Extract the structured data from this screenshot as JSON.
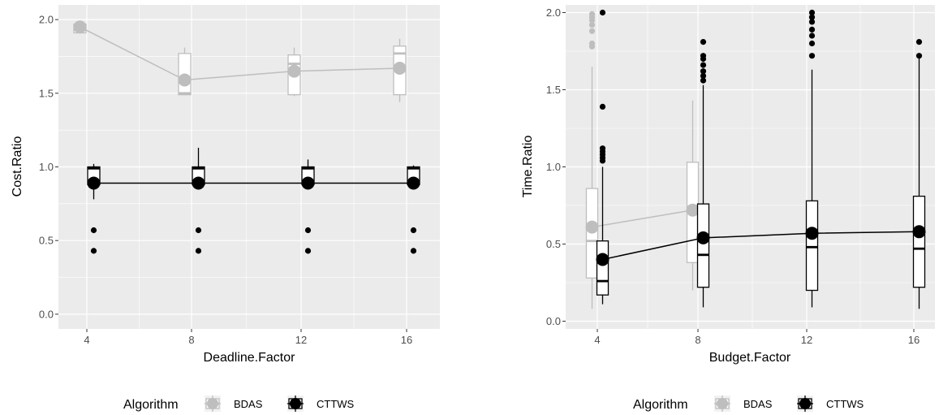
{
  "colors": {
    "panel_bg": "#ebebeb",
    "grid": "#ffffff",
    "BDAS": "#bebebe",
    "CTTWS": "#000000"
  },
  "chart_data": [
    {
      "type": "boxplot",
      "xlabel": "Deadline.Factor",
      "ylabel": "Cost.Ratio",
      "categories": [
        "4",
        "8",
        "12",
        "16"
      ],
      "y_ticks": [
        "0.0",
        "0.5",
        "1.0",
        "1.5",
        "2.0"
      ],
      "ylim": [
        -0.1,
        2.1
      ],
      "grid": true,
      "legend": {
        "title": "Algorithm",
        "position": "bottom",
        "entries": [
          {
            "label": "BDAS",
            "color": "#bebebe"
          },
          {
            "label": "CTTWS",
            "color": "#000000"
          }
        ]
      },
      "series": [
        {
          "key": "BDAS",
          "color": "#bebebe",
          "boxes": [
            {
              "category": "4",
              "q1": 1.91,
              "median": 1.93,
              "q3": 1.97,
              "lower": 1.91,
              "upper": 1.97,
              "mean": 1.95,
              "outliers": []
            },
            {
              "category": "8",
              "q1": 1.49,
              "median": 1.5,
              "q3": 1.77,
              "lower": 1.49,
              "upper": 1.81,
              "mean": 1.59,
              "outliers": []
            },
            {
              "category": "12",
              "q1": 1.49,
              "median": 1.7,
              "q3": 1.76,
              "lower": 1.48,
              "upper": 1.81,
              "mean": 1.65,
              "outliers": []
            },
            {
              "category": "16",
              "q1": 1.49,
              "median": 1.77,
              "q3": 1.82,
              "lower": 1.44,
              "upper": 1.87,
              "mean": 1.67,
              "outliers": []
            }
          ]
        },
        {
          "key": "CTTWS",
          "color": "#000000",
          "boxes": [
            {
              "category": "4",
              "q1": 0.88,
              "median": 0.99,
              "q3": 1.0,
              "lower": 0.78,
              "upper": 1.02,
              "mean": 0.89,
              "outliers": [
                0.57,
                0.43
              ]
            },
            {
              "category": "8",
              "q1": 0.88,
              "median": 0.99,
              "q3": 1.0,
              "lower": 0.87,
              "upper": 1.13,
              "mean": 0.89,
              "outliers": [
                0.57,
                0.43
              ]
            },
            {
              "category": "12",
              "q1": 0.88,
              "median": 0.99,
              "q3": 1.0,
              "lower": 0.87,
              "upper": 1.05,
              "mean": 0.89,
              "outliers": [
                0.57,
                0.43
              ]
            },
            {
              "category": "16",
              "q1": 0.88,
              "median": 0.99,
              "q3": 1.0,
              "lower": 0.87,
              "upper": 1.01,
              "mean": 0.89,
              "outliers": [
                0.57,
                0.43
              ]
            }
          ]
        }
      ]
    },
    {
      "type": "boxplot",
      "xlabel": "Budget.Factor",
      "ylabel": "Time.Ratio",
      "categories": [
        "4",
        "8",
        "12",
        "16"
      ],
      "y_ticks": [
        "0.0",
        "0.5",
        "1.0",
        "1.5",
        "2.0"
      ],
      "ylim": [
        -0.05,
        2.05
      ],
      "grid": true,
      "legend": {
        "title": "Algorithm",
        "position": "bottom",
        "entries": [
          {
            "label": "BDAS",
            "color": "#bebebe"
          },
          {
            "label": "CTTWS",
            "color": "#000000"
          }
        ]
      },
      "series": [
        {
          "key": "BDAS",
          "color": "#bebebe",
          "boxes": [
            {
              "category": "4",
              "q1": 0.28,
              "median": 0.52,
              "q3": 0.86,
              "lower": 0.08,
              "upper": 1.65,
              "mean": 0.61,
              "outliers": [
                1.78,
                1.8,
                1.88,
                1.92,
                1.95,
                1.97,
                1.99
              ]
            },
            {
              "category": "8",
              "q1": 0.38,
              "median": 0.72,
              "q3": 1.03,
              "lower": 0.2,
              "upper": 1.43,
              "mean": 0.72,
              "outliers": []
            }
          ]
        },
        {
          "key": "CTTWS",
          "color": "#000000",
          "boxes": [
            {
              "category": "4",
              "q1": 0.17,
              "median": 0.26,
              "q3": 0.52,
              "lower": 0.11,
              "upper": 1.0,
              "mean": 0.4,
              "outliers": [
                1.04,
                1.06,
                1.08,
                1.1,
                1.12,
                1.39,
                2.0
              ]
            },
            {
              "category": "8",
              "q1": 0.22,
              "median": 0.43,
              "q3": 0.76,
              "lower": 0.09,
              "upper": 1.53,
              "mean": 0.54,
              "outliers": [
                1.56,
                1.59,
                1.62,
                1.66,
                1.7,
                1.72,
                1.81
              ]
            },
            {
              "category": "12",
              "q1": 0.2,
              "median": 0.48,
              "q3": 0.78,
              "lower": 0.09,
              "upper": 1.63,
              "mean": 0.57,
              "outliers": [
                1.72,
                1.8,
                1.85,
                1.89,
                1.94,
                1.97,
                2.0
              ]
            },
            {
              "category": "16",
              "q1": 0.22,
              "median": 0.47,
              "q3": 0.81,
              "lower": 0.08,
              "upper": 1.71,
              "mean": 0.58,
              "outliers": [
                1.72,
                1.81
              ]
            }
          ]
        }
      ]
    }
  ]
}
